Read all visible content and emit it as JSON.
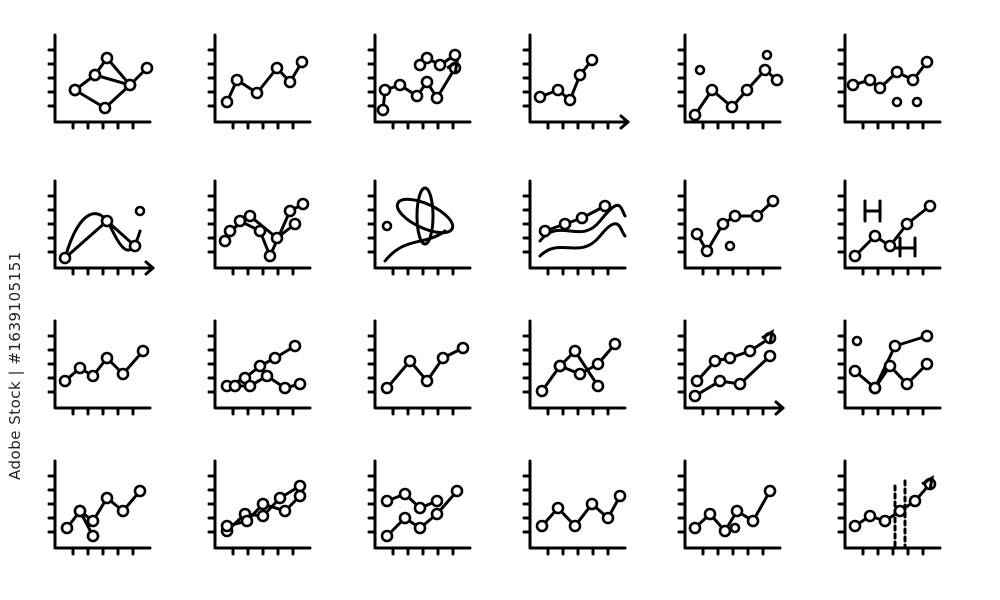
{
  "watermark": "Adobe Stock | #1639105151",
  "stroke_color": "#000000",
  "background_color": "#ffffff",
  "icons": [
    "network-graph-icon",
    "line-chart-icon",
    "double-trend-up-icon",
    "line-chart-arrows-icon",
    "dot-line-chart-icon",
    "scatter-line-icon",
    "sine-wave-chart-icon",
    "crossed-lines-chart-icon",
    "orbit-chart-icon",
    "multi-wave-chart-icon",
    "line-chart-icon",
    "candlestick-trend-icon",
    "line-chart-icon",
    "multi-line-chart-icon",
    "line-chart-icon",
    "network-line-chart-icon",
    "trend-up-arrow-icon",
    "scatter-connected-icon",
    "line-chart-icon",
    "double-line-chart-icon",
    "double-line-chart-icon",
    "line-chart-icon",
    "line-chart-icon",
    "trend-dashed-arrow-icon"
  ]
}
